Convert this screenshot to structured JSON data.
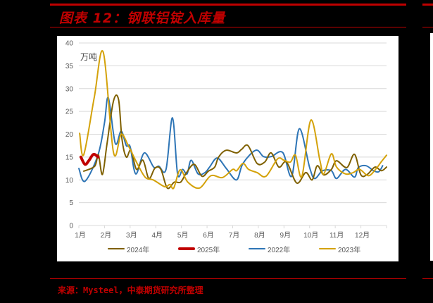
{
  "header": {
    "title": "图表 12：钢联铝锭入库量"
  },
  "footer": {
    "source": "来源：Mysteel，中泰期货研究所整理"
  },
  "colors": {
    "accent_red": "#c00000",
    "series_2024": "#7f6000",
    "series_2025": "#c00000",
    "series_2022": "#2e75b6",
    "series_2023": "#d4a20a",
    "grid": "#d9d9d9"
  },
  "chart_data": {
    "type": "line",
    "title": "钢联铝锭入库量",
    "xlabel": "",
    "ylabel": "万吨",
    "unit_label": "万吨",
    "ylim": [
      0,
      40
    ],
    "yticks": [
      0,
      5,
      10,
      15,
      20,
      25,
      30,
      35,
      40
    ],
    "xlim": [
      0,
      12
    ],
    "categories": [
      "1月",
      "2月",
      "3月",
      "4月",
      "5月",
      "6月",
      "7月",
      "8月",
      "9月",
      "10月",
      "11月",
      "12月"
    ],
    "grid": true,
    "legend_position": "bottom",
    "series": [
      {
        "name": "2024年",
        "color": "#7f6000",
        "width": 2,
        "x": [
          0.19,
          0.62,
          0.76,
          0.92,
          1.1,
          1.35,
          1.55,
          1.68,
          1.85,
          2.03,
          2.25,
          2.5,
          2.73,
          2.97,
          3.2,
          3.45,
          3.72,
          3.97,
          4.2,
          4.5,
          4.8,
          5.05,
          5.3,
          5.45,
          5.75,
          6.15,
          6.35,
          6.6,
          6.95,
          7.25,
          7.5,
          7.8,
          8.1,
          8.5,
          8.85,
          9.1,
          9.3,
          9.55,
          9.85,
          10.05,
          10.45,
          10.75,
          11.0,
          11.25,
          11.55,
          11.8,
          12.0
        ],
        "values": [
          11.9,
          13.0,
          15.5,
          11.2,
          18.0,
          27.3,
          27.6,
          19.0,
          15.0,
          16.5,
          12.3,
          14.3,
          10.3,
          12.6,
          12.3,
          8.2,
          9.5,
          9.5,
          11.6,
          13.4,
          10.8,
          11.9,
          12.8,
          15.0,
          16.5,
          15.9,
          16.7,
          17.5,
          13.6,
          13.9,
          15.9,
          12.8,
          13.9,
          9.3,
          11.6,
          10.0,
          13.1,
          11.1,
          12.3,
          14.2,
          12.7,
          15.6,
          11.1,
          11.2,
          12.8,
          12.0,
          12.8
        ]
      },
      {
        "name": "2025年",
        "color": "#c00000",
        "width": 4,
        "x": [
          0.08,
          0.24,
          0.4,
          0.57,
          0.75
        ],
        "values": [
          15.0,
          13.4,
          14.3,
          15.6,
          15.0
        ]
      },
      {
        "name": "2022年",
        "color": "#2e75b6",
        "width": 2,
        "x": [
          0.0,
          0.24,
          0.75,
          1.0,
          1.15,
          1.42,
          1.65,
          1.85,
          2.0,
          2.22,
          2.55,
          2.92,
          3.12,
          3.4,
          3.65,
          3.85,
          4.05,
          4.22,
          4.38,
          4.65,
          4.92,
          5.1,
          5.4,
          5.75,
          6.15,
          6.4,
          6.9,
          7.2,
          7.5,
          7.95,
          8.3,
          8.6,
          9.0,
          9.2,
          9.5,
          9.85,
          10.05,
          10.4,
          10.75,
          10.9,
          11.2,
          11.5,
          11.7,
          11.85
        ],
        "values": [
          12.5,
          9.7,
          15.5,
          22.5,
          28.0,
          18.0,
          20.7,
          17.5,
          17.3,
          11.3,
          15.9,
          12.8,
          13.0,
          12.3,
          23.6,
          11.3,
          12.3,
          11.3,
          14.3,
          11.3,
          11.6,
          12.8,
          14.8,
          12.5,
          10.0,
          13.6,
          16.5,
          15.1,
          15.1,
          16.0,
          10.8,
          21.2,
          12.7,
          10.3,
          12.0,
          12.0,
          10.3,
          12.3,
          10.6,
          12.7,
          13.1,
          12.0,
          11.8,
          13.1
        ]
      },
      {
        "name": "2023年",
        "color": "#d4a20a",
        "width": 2,
        "x": [
          0.03,
          0.19,
          0.6,
          0.95,
          1.35,
          1.65,
          1.92,
          2.3,
          2.6,
          2.9,
          3.35,
          3.55,
          3.7,
          3.95,
          4.25,
          4.7,
          5.15,
          5.6,
          6.0,
          6.15,
          6.4,
          6.62,
          6.95,
          7.3,
          7.75,
          8.0,
          8.25,
          8.45,
          8.7,
          9.05,
          9.4,
          9.55,
          9.85,
          10.05,
          10.4,
          10.7,
          10.95,
          11.3,
          11.6,
          11.8,
          12.0
        ],
        "values": [
          20.2,
          15.5,
          28.0,
          38.0,
          16.0,
          20.0,
          17.6,
          13.3,
          10.5,
          10.0,
          8.5,
          9.0,
          8.2,
          12.2,
          9.5,
          8.2,
          10.9,
          10.5,
          12.3,
          12.0,
          13.6,
          12.3,
          11.6,
          10.8,
          14.6,
          14.3,
          13.9,
          15.4,
          10.8,
          23.1,
          14.3,
          11.3,
          15.7,
          12.8,
          11.3,
          11.6,
          12.3,
          10.9,
          12.5,
          14.0,
          15.4
        ]
      }
    ]
  }
}
